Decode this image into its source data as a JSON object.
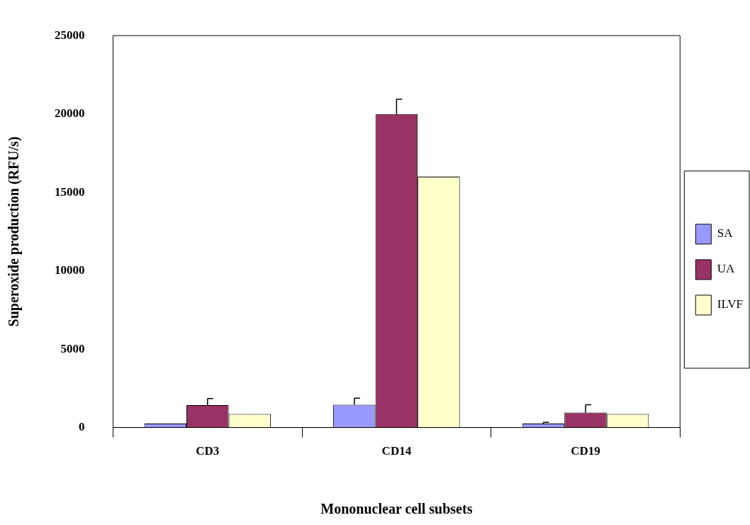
{
  "chart_data": {
    "type": "bar",
    "xlabel": "Mononuclear cell subsets",
    "ylabel": "Superoxide production (RFU/s)",
    "categories": [
      "CD3",
      "CD14",
      "CD19"
    ],
    "series": [
      {
        "name": "SA",
        "color": "#9999ff",
        "values": [
          250,
          1450,
          250
        ],
        "errors": [
          null,
          420,
          80
        ]
      },
      {
        "name": "UA",
        "color": "#993366",
        "values": [
          1430,
          20000,
          950
        ],
        "errors": [
          420,
          950,
          500
        ]
      },
      {
        "name": "ILVF",
        "color": "#ffffcc",
        "values": [
          870,
          16000,
          870
        ]
      }
    ],
    "ylim": [
      0,
      25000
    ],
    "yticks": [
      0,
      5000,
      10000,
      15000,
      20000,
      25000
    ],
    "grid": false,
    "legend": "right"
  }
}
